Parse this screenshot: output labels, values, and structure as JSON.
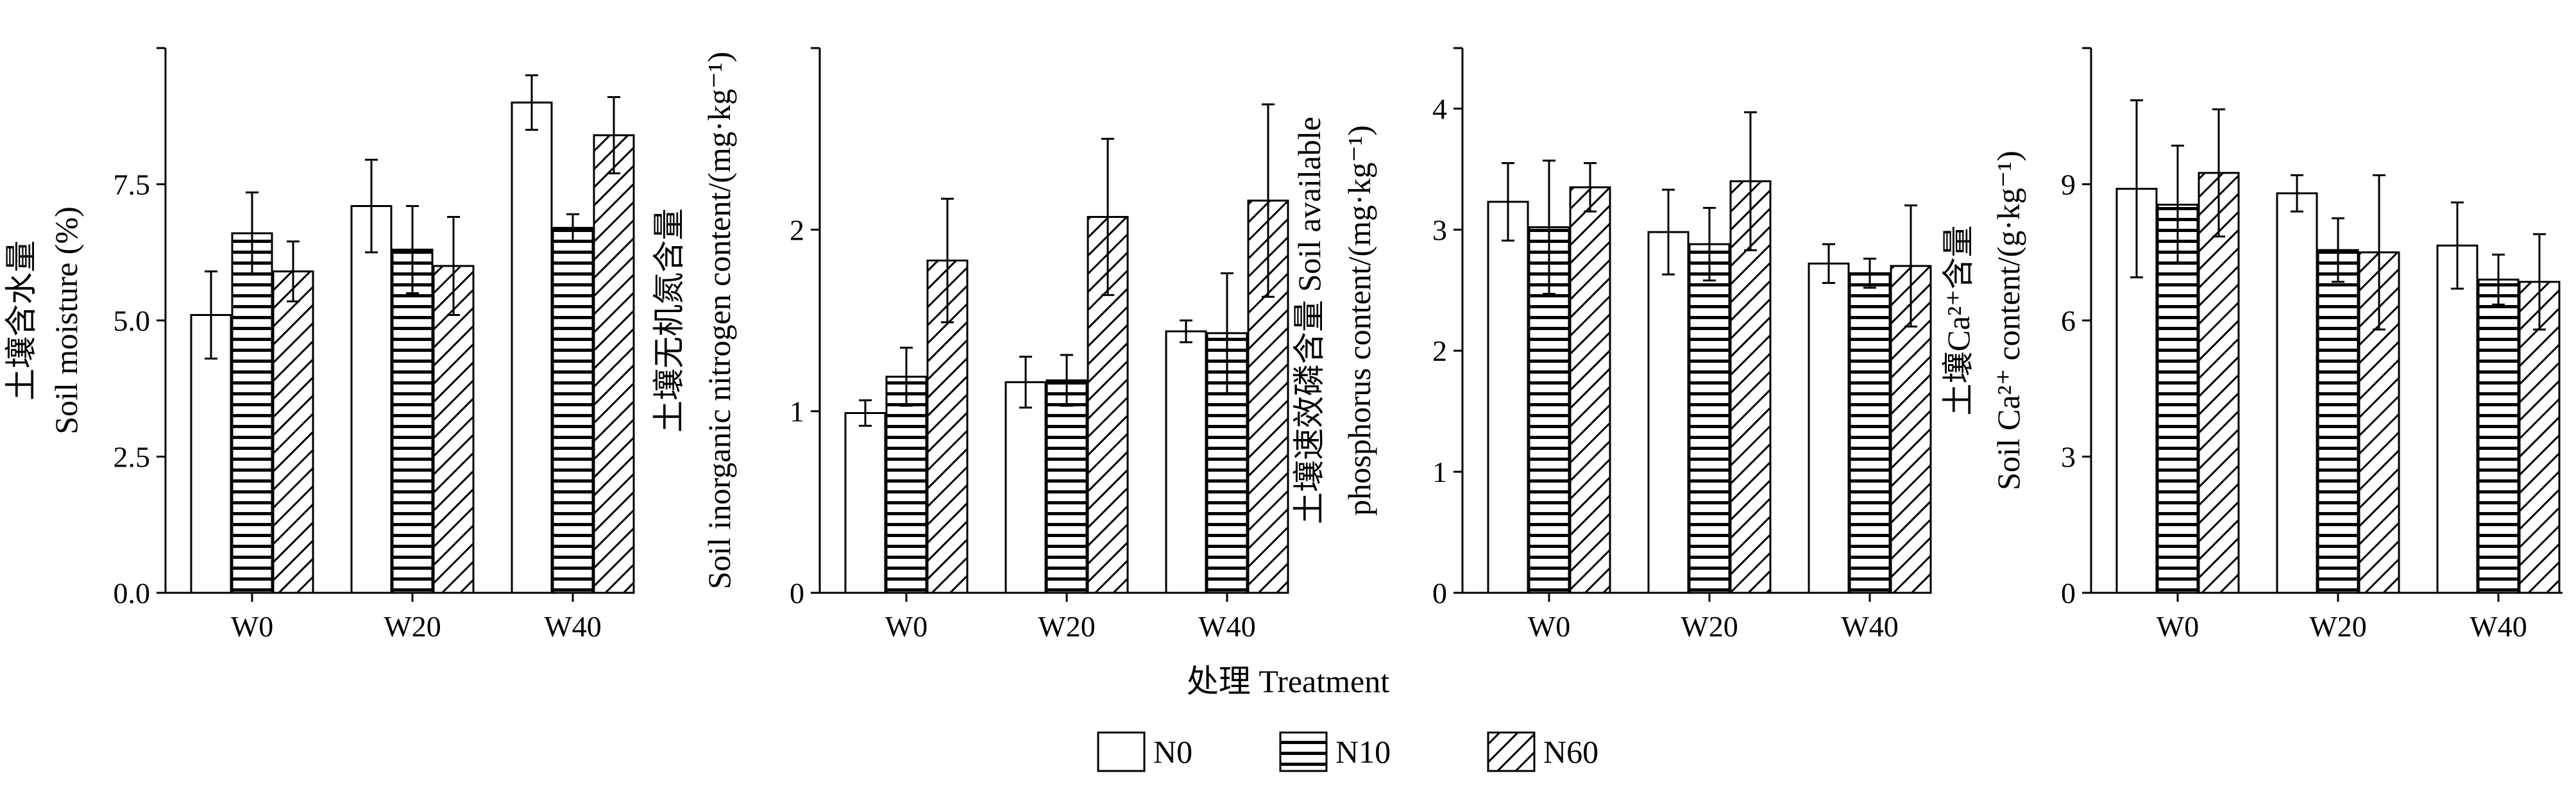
{
  "treatment_axis_label": "处理 Treatment",
  "legend": [
    {
      "label": "N0",
      "pattern": "blank"
    },
    {
      "label": "N10",
      "pattern": "horizontal"
    },
    {
      "label": "N60",
      "pattern": "diagonal"
    }
  ],
  "chart_data": [
    {
      "type": "bar",
      "categories": [
        "W0",
        "W20",
        "W40"
      ],
      "ylim": [
        0,
        10
      ],
      "yticks": [
        "0.0",
        "2.5",
        "5.0",
        "7.5"
      ],
      "ytick_values": [
        0,
        2.5,
        5,
        7.5
      ],
      "ylabel_lines": [
        "土壤含水量",
        "Soil moisture (%)"
      ],
      "series": [
        {
          "name": "N0",
          "values": [
            5.1,
            7.1,
            9.0
          ],
          "errors": [
            0.8,
            0.85,
            0.5
          ]
        },
        {
          "name": "N10",
          "values": [
            6.6,
            6.3,
            6.7
          ],
          "errors": [
            0.75,
            0.8,
            0.25
          ]
        },
        {
          "name": "N60",
          "values": [
            5.9,
            6.0,
            8.4
          ],
          "errors": [
            0.55,
            0.9,
            0.7
          ]
        }
      ]
    },
    {
      "type": "bar",
      "categories": [
        "W0",
        "W20",
        "W40"
      ],
      "ylim": [
        0,
        3
      ],
      "yticks": [
        "0",
        "1",
        "2"
      ],
      "ytick_values": [
        0,
        1,
        2
      ],
      "ylabel_lines": [
        "土壤无机氮含量",
        "Soil inorganic nitrogen content/(mg·kg⁻¹)"
      ],
      "series": [
        {
          "name": "N0",
          "values": [
            0.99,
            1.16,
            1.44
          ],
          "errors": [
            0.07,
            0.14,
            0.06
          ]
        },
        {
          "name": "N10",
          "values": [
            1.19,
            1.17,
            1.43
          ],
          "errors": [
            0.16,
            0.14,
            0.33
          ]
        },
        {
          "name": "N60",
          "values": [
            1.83,
            2.07,
            2.16
          ],
          "errors": [
            0.34,
            0.43,
            0.53
          ]
        }
      ]
    },
    {
      "type": "bar",
      "categories": [
        "W0",
        "W20",
        "W40"
      ],
      "ylim": [
        0,
        4.5
      ],
      "yticks": [
        "0",
        "1",
        "2",
        "3",
        "4"
      ],
      "ytick_values": [
        0,
        1,
        2,
        3,
        4
      ],
      "ylabel_lines": [
        "土壤速效磷含量  Soil available",
        "phosphorus content/(mg·kg⁻¹)"
      ],
      "series": [
        {
          "name": "N0",
          "values": [
            3.23,
            2.98,
            2.72
          ],
          "errors": [
            0.32,
            0.35,
            0.16
          ]
        },
        {
          "name": "N10",
          "values": [
            3.02,
            2.88,
            2.64
          ],
          "errors": [
            0.55,
            0.3,
            0.12
          ]
        },
        {
          "name": "N60",
          "values": [
            3.35,
            3.4,
            2.7
          ],
          "errors": [
            0.2,
            0.57,
            0.5
          ]
        }
      ]
    },
    {
      "type": "bar",
      "categories": [
        "W0",
        "W20",
        "W40"
      ],
      "ylim": [
        0,
        12
      ],
      "yticks": [
        "0",
        "3",
        "6",
        "9"
      ],
      "ytick_values": [
        0,
        3,
        6,
        9
      ],
      "ylabel_lines": [
        "土壤Ca²⁺含量",
        "Soil Ca²⁺ content/(g·kg⁻¹)"
      ],
      "series": [
        {
          "name": "N0",
          "values": [
            8.9,
            8.8,
            7.65
          ],
          "errors": [
            1.95,
            0.4,
            0.95
          ]
        },
        {
          "name": "N10",
          "values": [
            8.55,
            7.55,
            6.9
          ],
          "errors": [
            1.3,
            0.7,
            0.55
          ]
        },
        {
          "name": "N60",
          "values": [
            9.25,
            7.5,
            6.85
          ],
          "errors": [
            1.4,
            1.7,
            1.05
          ]
        }
      ]
    }
  ]
}
